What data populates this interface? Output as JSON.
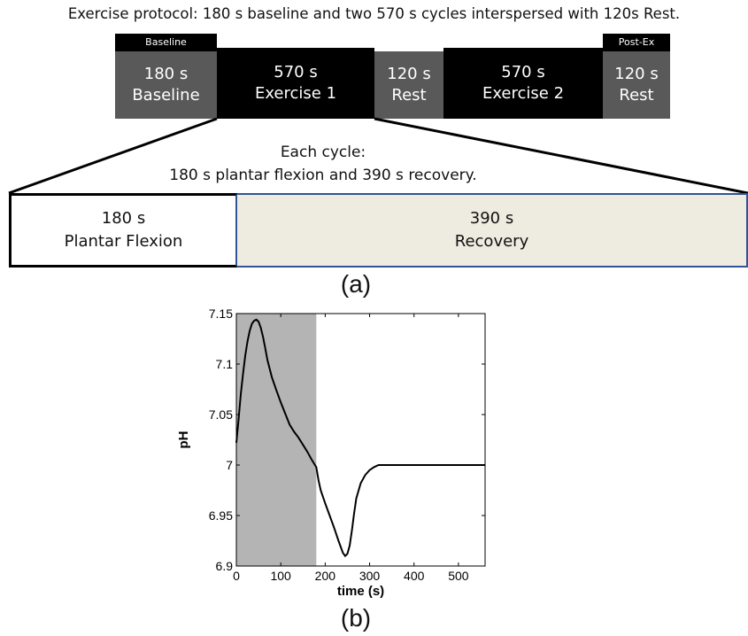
{
  "protocol": {
    "title": "Exercise protocol: 180 s baseline and two 570 s cycles interspersed with 120s Rest.",
    "tag_baseline": "Baseline",
    "tag_postex": "Post-Ex",
    "blocks": [
      {
        "duration": "180 s",
        "name": "Baseline"
      },
      {
        "duration": "570 s",
        "name": "Exercise 1"
      },
      {
        "duration": "120 s",
        "name": "Rest"
      },
      {
        "duration": "570 s",
        "name": "Exercise 2"
      },
      {
        "duration": "120 s",
        "name": "Rest"
      }
    ],
    "colors": {
      "phase_grey": "#595959",
      "phase_black": "#000000",
      "recovery_fill": "#eeebe0",
      "border_blue": "#2f5597"
    }
  },
  "cycle": {
    "line1": "Each cycle:",
    "line2": "180 s plantar flexion and 390 s recovery.",
    "parts": [
      {
        "duration": "180 s",
        "name": "Plantar Flexion"
      },
      {
        "duration": "390 s",
        "name": "Recovery"
      }
    ]
  },
  "labels": {
    "a": "(a)",
    "b": "(b)"
  },
  "chart_data": {
    "type": "line",
    "title": "",
    "xlabel": "time (s)",
    "ylabel": "pH",
    "xlim": [
      0,
      560
    ],
    "ylim": [
      6.9,
      7.15
    ],
    "xticks": [
      "0",
      "100",
      "200",
      "300",
      "400",
      "500"
    ],
    "yticks": [
      "6.9",
      "6.95",
      "7",
      "7.05",
      "7.1",
      "7.15"
    ],
    "shaded_region": {
      "x_start": 0,
      "x_end": 180,
      "color": "#b4b4b4"
    },
    "grid": false,
    "series": [
      {
        "name": "",
        "x": [
          0,
          5,
          10,
          15,
          20,
          25,
          30,
          35,
          40,
          45,
          50,
          55,
          60,
          65,
          70,
          80,
          90,
          100,
          110,
          120,
          130,
          140,
          150,
          160,
          170,
          180,
          185,
          190,
          200,
          210,
          220,
          230,
          240,
          245,
          250,
          255,
          260,
          265,
          270,
          280,
          290,
          300,
          310,
          320,
          330,
          340,
          400,
          450,
          500,
          560
        ],
        "y": [
          7.022,
          7.045,
          7.07,
          7.09,
          7.108,
          7.122,
          7.133,
          7.14,
          7.143,
          7.144,
          7.142,
          7.136,
          7.127,
          7.116,
          7.104,
          7.087,
          7.074,
          7.062,
          7.051,
          7.04,
          7.033,
          7.027,
          7.02,
          7.013,
          7.005,
          6.998,
          6.985,
          6.975,
          6.962,
          6.95,
          6.938,
          6.925,
          6.913,
          6.91,
          6.912,
          6.92,
          6.935,
          6.952,
          6.967,
          6.982,
          6.99,
          6.995,
          6.998,
          7.0,
          7.0,
          7.0,
          7.0,
          7.0,
          7.0,
          7.0
        ]
      }
    ]
  }
}
